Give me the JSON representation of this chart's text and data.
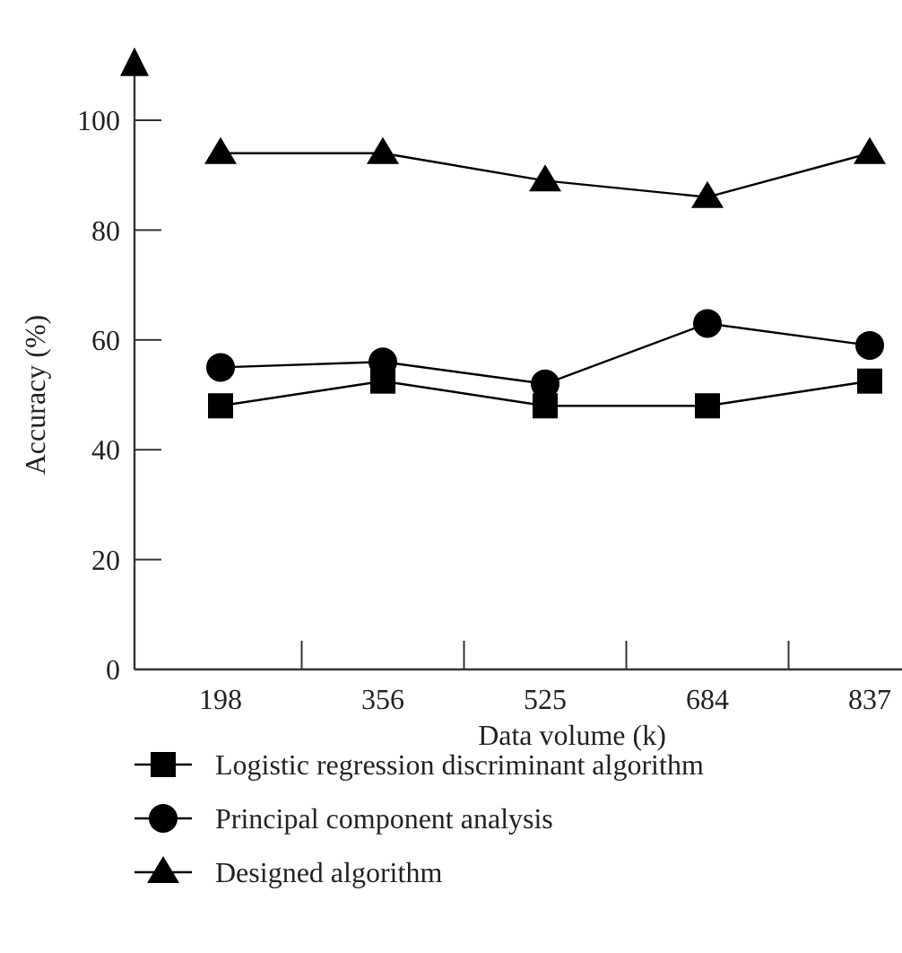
{
  "chart_data": {
    "type": "line",
    "xlabel": "Data volume (k)",
    "ylabel": "Accuracy (%)",
    "categories": [
      "198",
      "356",
      "525",
      "684",
      "837"
    ],
    "ylim": [
      0,
      110
    ],
    "yticks": [
      0,
      20,
      40,
      60,
      80,
      100
    ],
    "grid": false,
    "legend": "bottom",
    "series": [
      {
        "name": "Logistic regression discriminant algorithm",
        "color": "#000000",
        "marker": "square",
        "values": [
          48,
          52.5,
          48,
          48,
          52.5
        ]
      },
      {
        "name": "Principal component analysis",
        "color": "#000000",
        "marker": "circle",
        "values": [
          55,
          56,
          52,
          63,
          59
        ]
      },
      {
        "name": "Designed algorithm",
        "color": "#000000",
        "marker": "triangle",
        "values": [
          94,
          94,
          89,
          86,
          94
        ]
      }
    ]
  }
}
